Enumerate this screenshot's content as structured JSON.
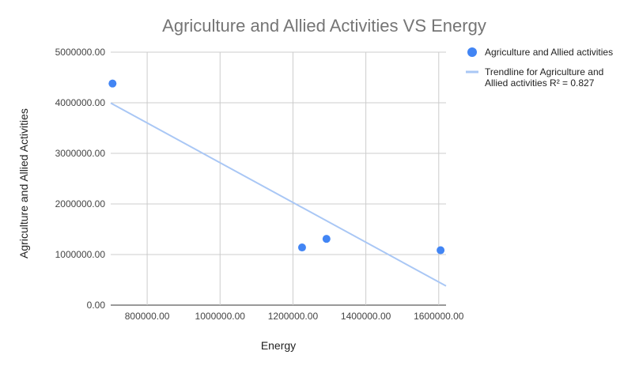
{
  "chart_data": {
    "type": "scatter",
    "title": "Agriculture and Allied Activities VS Energy",
    "xlabel": "Energy",
    "ylabel": "Agriculture and Allied Activities",
    "xlim": [
      700000,
      1620000
    ],
    "ylim": [
      0,
      5000000
    ],
    "x_ticks": [
      800000,
      1000000,
      1200000,
      1400000,
      1600000
    ],
    "x_tick_labels": [
      "800000.00",
      "1000000.00",
      "1200000.00",
      "1400000.00",
      "1600000.00"
    ],
    "y_ticks": [
      0,
      1000000,
      2000000,
      3000000,
      4000000,
      5000000
    ],
    "y_tick_labels": [
      "0.00",
      "1000000.00",
      "2000000.00",
      "3000000.00",
      "4000000.00",
      "5000000.00"
    ],
    "grid": true,
    "legend_position": "right",
    "series": [
      {
        "name": "Agriculture and Allied activities",
        "color": "#4285f4",
        "points": [
          {
            "x": 705000,
            "y": 4380000
          },
          {
            "x": 1225000,
            "y": 1140000
          },
          {
            "x": 1292000,
            "y": 1310000
          },
          {
            "x": 1605000,
            "y": 1085000
          }
        ]
      }
    ],
    "trendline": {
      "legend_lines": [
        "Trendline for Agriculture and",
        "Allied activities R² = 0.827"
      ],
      "color": "#a9c7f5",
      "slope": -3.93,
      "intercept": 6745000,
      "r_squared": 0.827
    }
  }
}
